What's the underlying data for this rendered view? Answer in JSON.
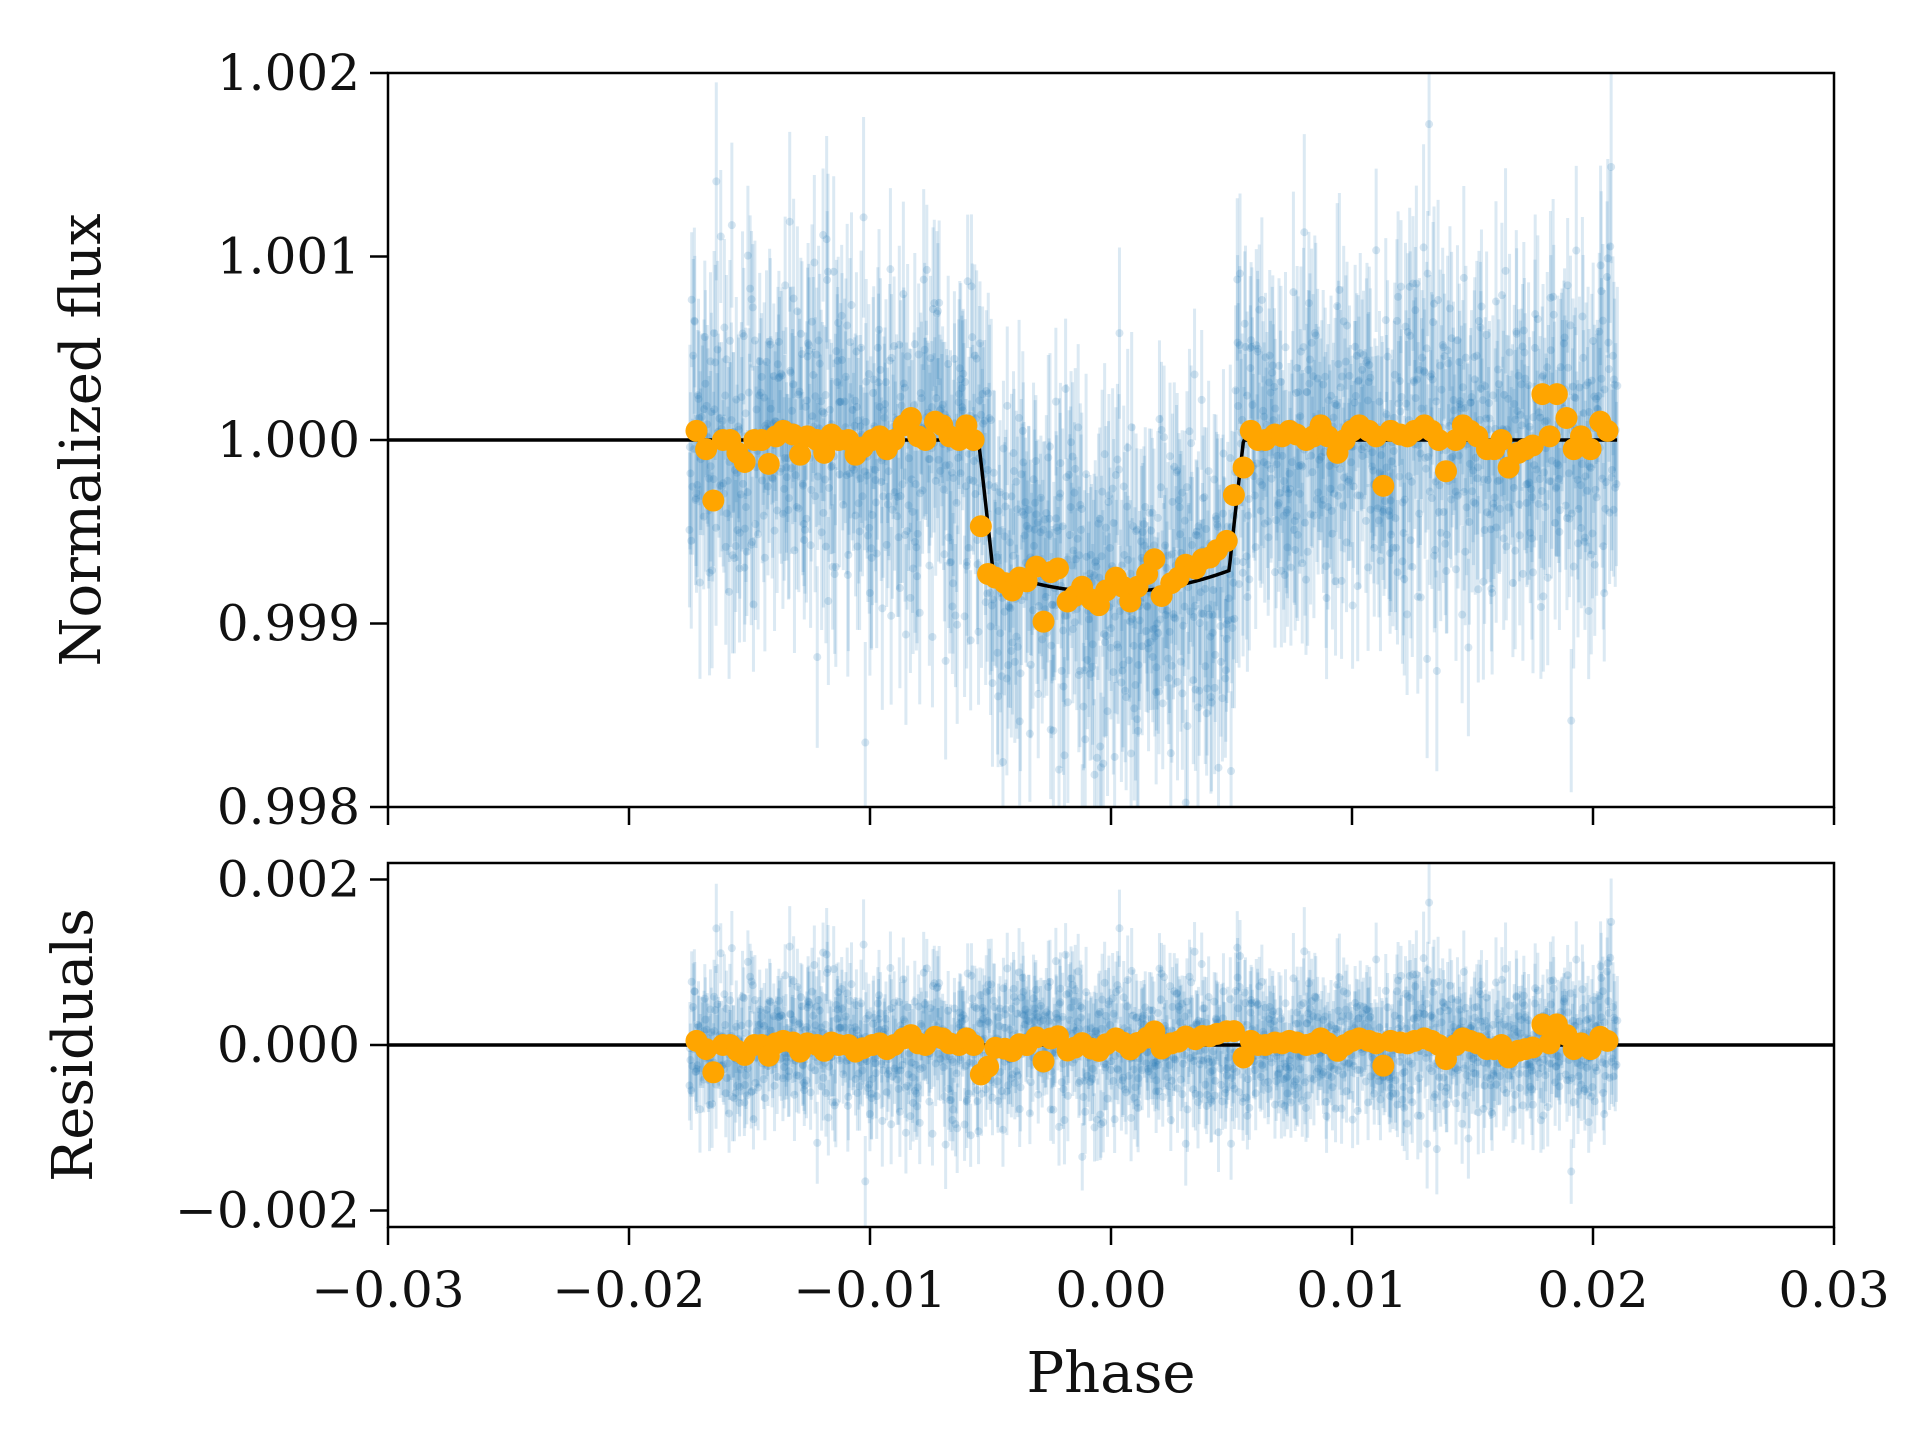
{
  "chart_data": [
    {
      "type": "scatter",
      "panel": "top",
      "xlabel": "",
      "ylabel": "Normalized flux",
      "xlim": [
        -0.03,
        0.03
      ],
      "ylim": [
        0.998,
        1.002
      ],
      "x_ticks": [
        -0.03,
        -0.02,
        -0.01,
        0.0,
        0.01,
        0.02,
        0.03
      ],
      "y_ticks": [
        0.998,
        0.999,
        1.0,
        1.001,
        1.002
      ],
      "y_tick_labels": [
        "0.998",
        "0.999",
        "1.000",
        "1.001",
        "1.002"
      ],
      "grid": false,
      "data_x_range": [
        -0.0175,
        0.021
      ],
      "model": {
        "baseline": 1.0,
        "depth": 0.00083,
        "ingress_start": -0.0055,
        "egress_end": 0.0055,
        "x_range": [
          -0.03,
          0.021
        ]
      },
      "raw_scatter": 0.00045,
      "binned_points": [
        [
          -0.0172,
          1.00005
        ],
        [
          -0.0168,
          0.99995
        ],
        [
          -0.0165,
          0.99967
        ],
        [
          -0.0161,
          1.0
        ],
        [
          -0.0158,
          1.0
        ],
        [
          -0.0155,
          0.99993
        ],
        [
          -0.0152,
          0.99988
        ],
        [
          -0.0148,
          1.0
        ],
        [
          -0.0145,
          1.0
        ],
        [
          -0.0142,
          0.99987
        ],
        [
          -0.0139,
          1.00002
        ],
        [
          -0.0136,
          1.00005
        ],
        [
          -0.0132,
          1.00003
        ],
        [
          -0.0129,
          0.99992
        ],
        [
          -0.0126,
          1.00002
        ],
        [
          -0.0122,
          1.0
        ],
        [
          -0.0119,
          0.99993
        ],
        [
          -0.0116,
          1.00003
        ],
        [
          -0.0113,
          1.0
        ],
        [
          -0.0109,
          1.0
        ],
        [
          -0.0106,
          0.99992
        ],
        [
          -0.0103,
          0.99996
        ],
        [
          -0.0099,
          1.0
        ],
        [
          -0.0096,
          1.00002
        ],
        [
          -0.0093,
          0.99995
        ],
        [
          -0.009,
          1.0
        ],
        [
          -0.0086,
          1.00008
        ],
        [
          -0.0083,
          1.00012
        ],
        [
          -0.008,
          1.00002
        ],
        [
          -0.0077,
          1.0
        ],
        [
          -0.0073,
          1.0001
        ],
        [
          -0.007,
          1.00008
        ],
        [
          -0.0067,
          1.00002
        ],
        [
          -0.0063,
          1.0
        ],
        [
          -0.006,
          1.00008
        ],
        [
          -0.0057,
          1.0
        ],
        [
          -0.0054,
          0.99953
        ],
        [
          -0.0051,
          0.99927
        ],
        [
          -0.0048,
          0.99925
        ],
        [
          -0.0044,
          0.99922
        ],
        [
          -0.0041,
          0.99918
        ],
        [
          -0.0038,
          0.99925
        ],
        [
          -0.0035,
          0.99923
        ],
        [
          -0.0031,
          0.99931
        ],
        [
          -0.0028,
          0.99901
        ],
        [
          -0.0025,
          0.99928
        ],
        [
          -0.0022,
          0.9993
        ],
        [
          -0.0018,
          0.99912
        ],
        [
          -0.0015,
          0.99915
        ],
        [
          -0.0012,
          0.9992
        ],
        [
          -0.0008,
          0.99913
        ],
        [
          -0.0005,
          0.9991
        ],
        [
          -0.0002,
          0.99918
        ],
        [
          0.0002,
          0.99925
        ],
        [
          0.0005,
          0.9992
        ],
        [
          0.0008,
          0.99912
        ],
        [
          0.0011,
          0.9992
        ],
        [
          0.0015,
          0.99927
        ],
        [
          0.0018,
          0.99935
        ],
        [
          0.0021,
          0.99915
        ],
        [
          0.0025,
          0.99922
        ],
        [
          0.0028,
          0.99925
        ],
        [
          0.0031,
          0.99932
        ],
        [
          0.0035,
          0.9993
        ],
        [
          0.0038,
          0.99935
        ],
        [
          0.0041,
          0.99936
        ],
        [
          0.0044,
          0.9994
        ],
        [
          0.0048,
          0.99945
        ],
        [
          0.0051,
          0.9997
        ],
        [
          0.0055,
          0.99985
        ],
        [
          0.0058,
          1.00005
        ],
        [
          0.0061,
          1.0
        ],
        [
          0.0064,
          1.0
        ],
        [
          0.0068,
          1.00003
        ],
        [
          0.0071,
          1.00002
        ],
        [
          0.0074,
          1.00005
        ],
        [
          0.0077,
          1.00003
        ],
        [
          0.0081,
          1.0
        ],
        [
          0.0084,
          1.00002
        ],
        [
          0.0087,
          1.00008
        ],
        [
          0.009,
          1.00002
        ],
        [
          0.0094,
          0.99993
        ],
        [
          0.0097,
          1.0
        ],
        [
          0.01,
          1.00005
        ],
        [
          0.0103,
          1.00008
        ],
        [
          0.0107,
          1.00005
        ],
        [
          0.011,
          1.00002
        ],
        [
          0.0113,
          0.99975
        ],
        [
          0.0116,
          1.00005
        ],
        [
          0.012,
          1.00003
        ],
        [
          0.0123,
          1.00002
        ],
        [
          0.0126,
          1.00005
        ],
        [
          0.013,
          1.00008
        ],
        [
          0.0133,
          1.00005
        ],
        [
          0.0136,
          1.0
        ],
        [
          0.0139,
          0.99983
        ],
        [
          0.0143,
          1.0
        ],
        [
          0.0146,
          1.00008
        ],
        [
          0.0149,
          1.00005
        ],
        [
          0.0152,
          1.00002
        ],
        [
          0.0156,
          0.99995
        ],
        [
          0.0159,
          0.99995
        ],
        [
          0.0162,
          1.0
        ],
        [
          0.0165,
          0.99985
        ],
        [
          0.0169,
          0.99993
        ],
        [
          0.0172,
          0.99995
        ],
        [
          0.0175,
          0.99997
        ],
        [
          0.0179,
          1.00025
        ],
        [
          0.0182,
          1.00002
        ],
        [
          0.0185,
          1.00025
        ],
        [
          0.0189,
          1.00012
        ],
        [
          0.0192,
          0.99995
        ],
        [
          0.0195,
          1.00002
        ],
        [
          0.0199,
          0.99995
        ],
        [
          0.0203,
          1.0001
        ],
        [
          0.0206,
          1.00005
        ]
      ],
      "colors": {
        "raw": "#1f77b4",
        "binned": "#ffa500",
        "model": "#000000"
      }
    },
    {
      "type": "scatter",
      "panel": "bottom",
      "xlabel": "Phase",
      "ylabel": "Residuals",
      "xlim": [
        -0.03,
        0.03
      ],
      "ylim": [
        -0.0022,
        0.0022
      ],
      "x_ticks": [
        -0.03,
        -0.02,
        -0.01,
        0.0,
        0.01,
        0.02,
        0.03
      ],
      "x_tick_labels": [
        "−0.03",
        "−0.02",
        "−0.01",
        "0.00",
        "0.01",
        "0.02",
        "0.03"
      ],
      "y_ticks": [
        -0.002,
        0.0,
        0.002
      ],
      "y_tick_labels": [
        "−0.002",
        "0.000",
        "0.002"
      ],
      "grid": false,
      "zero_line": 0.0,
      "raw_scatter": 0.00045,
      "binned_from_top_minus_model": true,
      "colors": {
        "raw": "#1f77b4",
        "binned": "#ffa500",
        "model": "#000000"
      }
    }
  ]
}
